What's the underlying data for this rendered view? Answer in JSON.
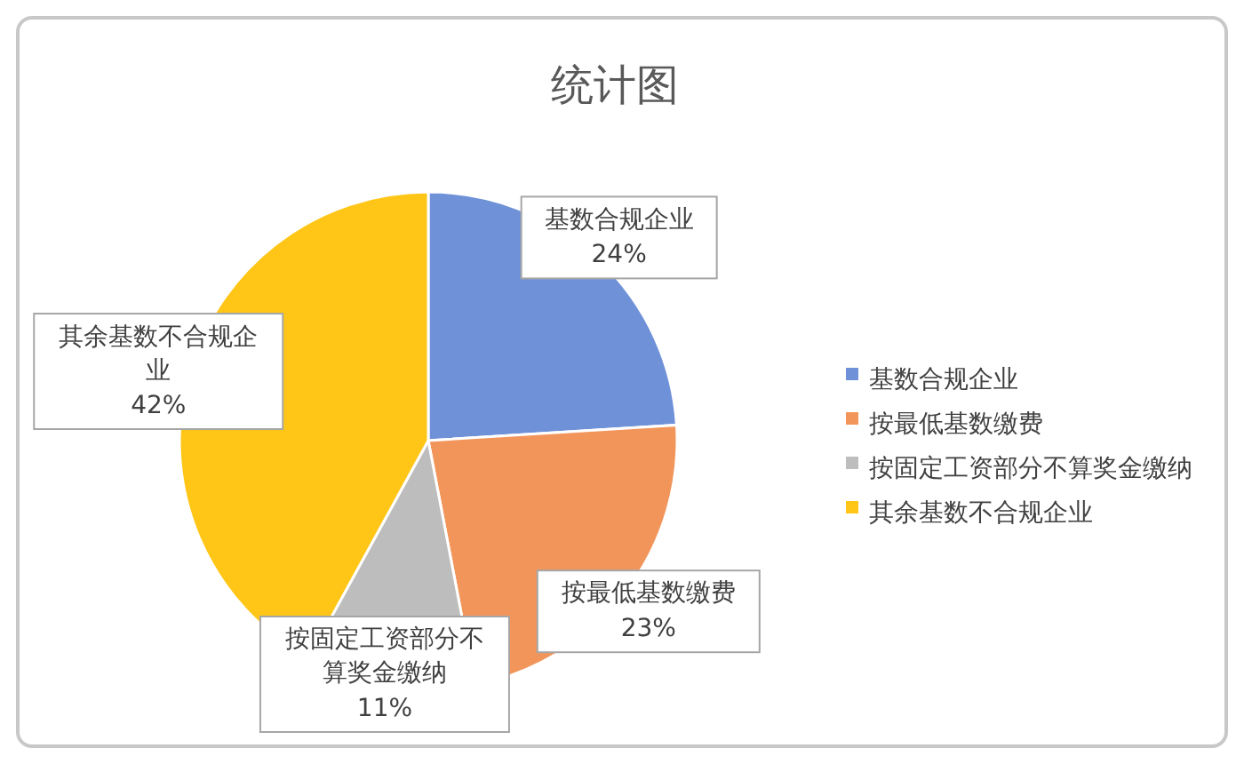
{
  "chart_data": {
    "type": "pie",
    "title": "统计图",
    "categories": [
      "基数合规企业",
      "按最低基数缴费",
      "按固定工资部分不算奖金缴纳",
      "其余基数不合规企业"
    ],
    "values": [
      24,
      23,
      11,
      42
    ],
    "colors": [
      "#6f91d8",
      "#f2955a",
      "#bdbdbd",
      "#ffc618"
    ],
    "value_labels": [
      "24%",
      "23%",
      "11%",
      "42%"
    ],
    "legend": "right"
  }
}
